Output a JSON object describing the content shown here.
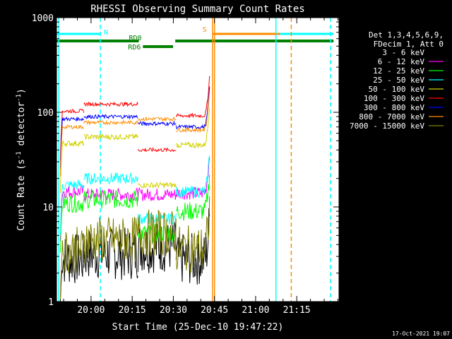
{
  "chart_data": {
    "type": "line",
    "title": "RHESSI Observing Summary Count Rates",
    "xlabel": "Start Time (25-Dec-10 19:47:22)",
    "ylabel_main": "Count Rate (s",
    "ylabel_sup1": "-1",
    "ylabel_mid": " detector",
    "ylabel_sup2": "-1",
    "ylabel_end": ")",
    "y_scale": "log",
    "ylim": [
      1,
      1000
    ],
    "xlim_minutes_after_start": [
      0,
      103
    ],
    "x_ticks": [
      {
        "label": "20:00",
        "minutes": 12.6
      },
      {
        "label": "20:15",
        "minutes": 27.6
      },
      {
        "label": "20:30",
        "minutes": 42.6
      },
      {
        "label": "20:45",
        "minutes": 57.6
      },
      {
        "label": "21:00",
        "minutes": 72.6
      },
      {
        "label": "21:15",
        "minutes": 87.6
      }
    ],
    "y_ticks": [
      {
        "label": "1",
        "value": 1
      },
      {
        "label": "10",
        "value": 10
      },
      {
        "label": "100",
        "value": 100
      },
      {
        "label": "1000",
        "value": 1000
      }
    ],
    "legend": {
      "header": [
        "Det 1,3,4,5,6,9,",
        "FDecim 1, Att 0"
      ],
      "placement": "right"
    },
    "series": [
      {
        "name": "3 - 6 keV",
        "color": "#000000",
        "levels": [
          2.8,
          3.2,
          3.8,
          2.8
        ],
        "noise": 0.28
      },
      {
        "name": "6 - 12 keV",
        "color": "#ff00ff",
        "levels": [
          14.5,
          13.5,
          13.5,
          14.0
        ],
        "noise": 0.07
      },
      {
        "name": "12 - 25 keV",
        "color": "#00ff00",
        "levels": [
          11.0,
          12.0,
          5.3,
          9.0
        ],
        "noise": 0.1
      },
      {
        "name": "25 - 50 keV",
        "color": "#00ffff",
        "levels": [
          17.0,
          20.0,
          7.5,
          14.5
        ],
        "noise": 0.06
      },
      {
        "name": "50 - 100 keV",
        "color": "#d2d200",
        "levels": [
          47.0,
          55.0,
          17.0,
          45.0
        ],
        "noise": 0.03
      },
      {
        "name": "100 - 300 keV",
        "color": "#ff0000",
        "levels": [
          103.0,
          122.0,
          40.0,
          92.0
        ],
        "noise": 0.02
      },
      {
        "name": "300 - 800 keV",
        "color": "#0000ff",
        "levels": [
          85.0,
          90.0,
          76.0,
          70.0
        ],
        "noise": 0.02
      },
      {
        "name": "800 - 7000 keV",
        "color": "#ff8c00",
        "levels": [
          70.0,
          78.0,
          85.0,
          65.0
        ],
        "noise": 0.02
      },
      {
        "name": "7000 - 15000 keV",
        "color": "#808000",
        "levels": [
          3.5,
          4.5,
          5.3,
          3.6
        ],
        "noise": 0.25
      }
    ],
    "orbit_segments": [
      {
        "start": 1.4,
        "end": 10.0,
        "peak_index": "rise"
      },
      {
        "start": 10.0,
        "end": 29.7
      },
      {
        "start": 29.7,
        "end": 43.6
      },
      {
        "start": 43.6,
        "end": 55.8
      }
    ],
    "flags": [
      {
        "label": "N",
        "color": "#00ffff",
        "row": "upper",
        "segments": [
          [
            0,
            16
          ],
          [
            80,
            101
          ]
        ]
      },
      {
        "label": "S",
        "color": "#ff8c00",
        "row": "upper",
        "segments": [
          [
            56.8,
            81.5
          ]
        ]
      },
      {
        "label": "RD0",
        "color": "#008000",
        "row": "middle",
        "segments": [
          [
            0,
            30
          ],
          [
            43.3,
            101
          ]
        ]
      },
      {
        "label": "RD6",
        "color": "#008000",
        "row": "lower",
        "segments": [
          [
            31.5,
            42.5
          ]
        ]
      }
    ],
    "vertical_lines": [
      {
        "minutes": 0.8,
        "color": "#00ffff",
        "style": "solid"
      },
      {
        "minutes": 16.0,
        "color": "#00ffff",
        "style": "dashed"
      },
      {
        "minutes": 80.0,
        "color": "#00ffff",
        "style": "solid"
      },
      {
        "minutes": 99.9,
        "color": "#00ffff",
        "style": "dashed"
      },
      {
        "minutes": 56.9,
        "color": "#ff8c00",
        "style": "solid"
      },
      {
        "minutes": 57.6,
        "color": "#ff8c00",
        "style": "solid"
      },
      {
        "minutes": 85.6,
        "color": "#ff8c00",
        "style": "dashed"
      }
    ],
    "footer_date": "17-Oct-2021 19:07"
  }
}
